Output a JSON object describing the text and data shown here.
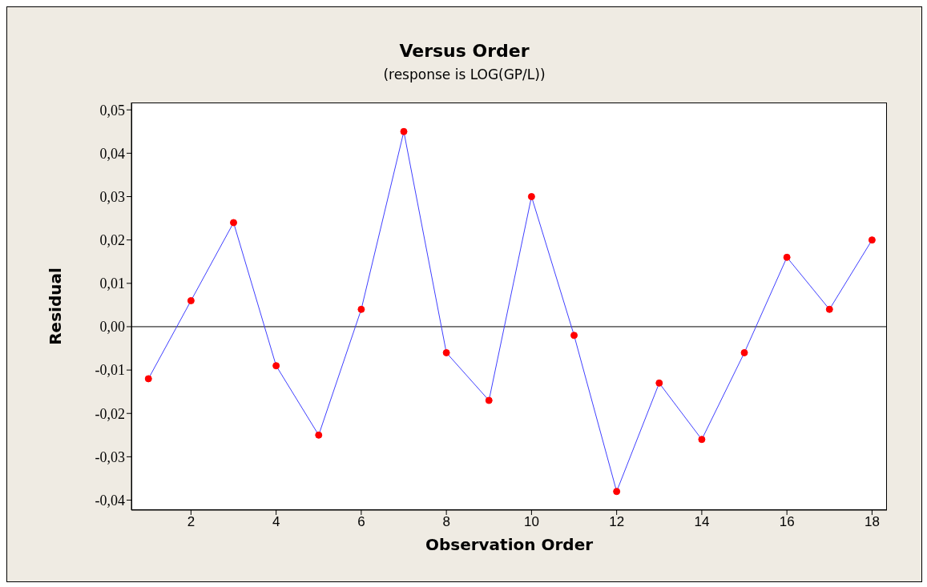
{
  "chart_data": {
    "type": "line",
    "title": "Versus Order",
    "subtitle": "(response is LOG(GP/L))",
    "xlabel": "Observation Order",
    "ylabel": "Residual",
    "x": [
      1,
      2,
      3,
      4,
      5,
      6,
      7,
      8,
      9,
      10,
      11,
      12,
      13,
      14,
      15,
      16,
      17,
      18
    ],
    "series": [
      {
        "type": "line",
        "color": "#3f3fff",
        "marker": "circle",
        "colors": [
          "#ff0000",
          "#ff0000",
          "#ff0000",
          "#ff0000",
          "#ff0000",
          "#ff0000",
          "#ff0000",
          "#ff0000",
          "#ff0000",
          "#ff0000",
          "#ff0000",
          "#ff0000",
          "#ff0000",
          "#ff0000",
          "#ff0000",
          "#ff0000",
          "#ff0000",
          "#ff0000"
        ],
        "values": [
          -0.012,
          0.006,
          0.024,
          -0.009,
          -0.025,
          0.004,
          0.045,
          -0.006,
          -0.017,
          0.03,
          -0.002,
          -0.038,
          -0.013,
          -0.026,
          -0.006,
          0.016,
          0.004,
          0.02
        ]
      }
    ],
    "xlim": [
      0.6,
      18.35
    ],
    "xticks": [
      2,
      4,
      6,
      8,
      10,
      12,
      14,
      16,
      18
    ],
    "ylim": [
      -0.0423,
      0.0517
    ],
    "yticks": [
      {
        "value": -0.04,
        "label": "-0,04"
      },
      {
        "value": -0.03,
        "label": "-0,03"
      },
      {
        "value": -0.02,
        "label": "-0,02"
      },
      {
        "value": -0.01,
        "label": "-0,01"
      },
      {
        "value": 0,
        "label": "0,00"
      },
      {
        "value": 0.01,
        "label": "0,01"
      },
      {
        "value": 0.02,
        "label": "0,02"
      },
      {
        "value": 0.03,
        "label": "0,03"
      },
      {
        "value": 0.04,
        "label": "0,04"
      },
      {
        "value": 0.05,
        "label": "0,05"
      }
    ],
    "ref_lines": [
      {
        "axis": "y",
        "value": 0,
        "color": "#000000"
      }
    ],
    "grid": false
  }
}
